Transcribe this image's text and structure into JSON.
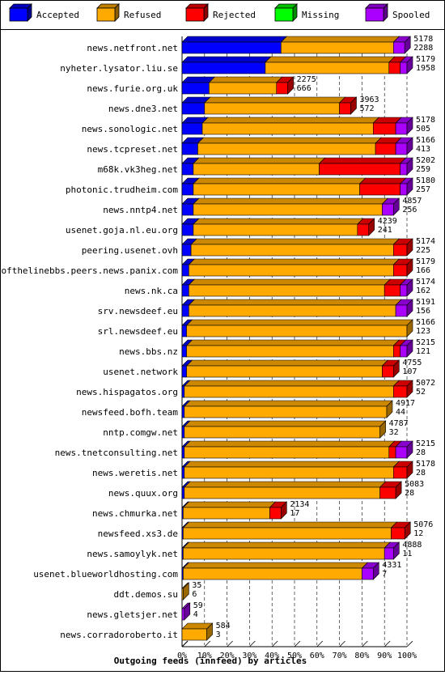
{
  "chart_data": {
    "type": "bar",
    "title": "Outgoing feeds (innfeed) by articles",
    "xlabel": "Outgoing feeds (innfeed) by articles",
    "xlim": [
      0,
      100
    ],
    "x_ticks": [
      "0%",
      "10%",
      "20%",
      "30%",
      "40%",
      "50%",
      "60%",
      "70%",
      "80%",
      "90%",
      "100%"
    ],
    "stacked": true,
    "orientation": "horizontal",
    "legend_position": "top",
    "legend": [
      {
        "name": "Accepted",
        "color": "#0000ff"
      },
      {
        "name": "Refused",
        "color": "#ffaa00"
      },
      {
        "name": "Rejected",
        "color": "#ff0000"
      },
      {
        "name": "Missing",
        "color": "#00ff00"
      },
      {
        "name": "Spooled",
        "color": "#aa00ff"
      }
    ],
    "rows": [
      {
        "host": "news.netfront.net",
        "offered": "5178",
        "accepted": "2288",
        "pct": {
          "accepted": 44,
          "refused": 50,
          "rejected": 0,
          "missing": 0,
          "spooled": 5
        }
      },
      {
        "host": "nyheter.lysator.liu.se",
        "offered": "5179",
        "accepted": "1958",
        "pct": {
          "accepted": 37,
          "refused": 55,
          "rejected": 5,
          "missing": 0,
          "spooled": 3
        }
      },
      {
        "host": "news.furie.org.uk",
        "offered": "2275",
        "accepted": "666",
        "pct": {
          "accepted": 12,
          "refused": 30,
          "rejected": 5,
          "missing": 0,
          "spooled": 0
        }
      },
      {
        "host": "news.dne3.net",
        "offered": "3963",
        "accepted": "572",
        "pct": {
          "accepted": 10,
          "refused": 60,
          "rejected": 5,
          "missing": 0,
          "spooled": 0
        }
      },
      {
        "host": "news.sonologic.net",
        "offered": "5178",
        "accepted": "505",
        "pct": {
          "accepted": 9,
          "refused": 76,
          "rejected": 10,
          "missing": 0,
          "spooled": 5
        }
      },
      {
        "host": "news.tcpreset.net",
        "offered": "5166",
        "accepted": "413",
        "pct": {
          "accepted": 7,
          "refused": 79,
          "rejected": 9,
          "missing": 0,
          "spooled": 5
        }
      },
      {
        "host": "m68k.vk3heg.net",
        "offered": "5202",
        "accepted": "259",
        "pct": {
          "accepted": 5,
          "refused": 56,
          "rejected": 36,
          "missing": 0,
          "spooled": 3
        }
      },
      {
        "host": "photonic.trudheim.com",
        "offered": "5180",
        "accepted": "257",
        "pct": {
          "accepted": 5,
          "refused": 74,
          "rejected": 18,
          "missing": 0,
          "spooled": 3
        }
      },
      {
        "host": "news.nntp4.net",
        "offered": "4857",
        "accepted": "256",
        "pct": {
          "accepted": 5,
          "refused": 84,
          "rejected": 0,
          "missing": 0,
          "spooled": 5
        }
      },
      {
        "host": "usenet.goja.nl.eu.org",
        "offered": "4239",
        "accepted": "241",
        "pct": {
          "accepted": 5,
          "refused": 73,
          "rejected": 5,
          "missing": 0,
          "spooled": 0
        }
      },
      {
        "host": "peering.usenet.ovh",
        "offered": "5174",
        "accepted": "225",
        "pct": {
          "accepted": 4,
          "refused": 90,
          "rejected": 6,
          "missing": 0,
          "spooled": 0
        }
      },
      {
        "host": "endofthelinebbs.peers.news.panix.com",
        "offered": "5179",
        "accepted": "166",
        "pct": {
          "accepted": 3,
          "refused": 91,
          "rejected": 6,
          "missing": 0,
          "spooled": 0
        }
      },
      {
        "host": "news.nk.ca",
        "offered": "5174",
        "accepted": "162",
        "pct": {
          "accepted": 3,
          "refused": 87,
          "rejected": 7,
          "missing": 0,
          "spooled": 3
        }
      },
      {
        "host": "srv.newsdeef.eu",
        "offered": "5191",
        "accepted": "156",
        "pct": {
          "accepted": 3,
          "refused": 92,
          "rejected": 0,
          "missing": 0,
          "spooled": 5
        }
      },
      {
        "host": "srl.newsdeef.eu",
        "offered": "5166",
        "accepted": "123",
        "pct": {
          "accepted": 2,
          "refused": 98,
          "rejected": 0,
          "missing": 0,
          "spooled": 0
        }
      },
      {
        "host": "news.bbs.nz",
        "offered": "5215",
        "accepted": "121",
        "pct": {
          "accepted": 2,
          "refused": 92,
          "rejected": 3,
          "missing": 0,
          "spooled": 3
        }
      },
      {
        "host": "usenet.network",
        "offered": "4755",
        "accepted": "107",
        "pct": {
          "accepted": 2,
          "refused": 87,
          "rejected": 5,
          "missing": 0,
          "spooled": 0
        }
      },
      {
        "host": "news.hispagatos.org",
        "offered": "5072",
        "accepted": "52",
        "pct": {
          "accepted": 1,
          "refused": 93,
          "rejected": 6,
          "missing": 0,
          "spooled": 0
        }
      },
      {
        "host": "newsfeed.bofh.team",
        "offered": "4917",
        "accepted": "44",
        "pct": {
          "accepted": 1,
          "refused": 90,
          "rejected": 0,
          "missing": 0,
          "spooled": 0
        }
      },
      {
        "host": "nntp.comgw.net",
        "offered": "4787",
        "accepted": "32",
        "pct": {
          "accepted": 1,
          "refused": 87,
          "rejected": 0,
          "missing": 0,
          "spooled": 0
        }
      },
      {
        "host": "news.tnetconsulting.net",
        "offered": "5215",
        "accepted": "28",
        "pct": {
          "accepted": 1,
          "refused": 91,
          "rejected": 3,
          "missing": 0,
          "spooled": 5
        }
      },
      {
        "host": "news.weretis.net",
        "offered": "5178",
        "accepted": "28",
        "pct": {
          "accepted": 1,
          "refused": 93,
          "rejected": 6,
          "missing": 0,
          "spooled": 0
        }
      },
      {
        "host": "news.quux.org",
        "offered": "5083",
        "accepted": "28",
        "pct": {
          "accepted": 1,
          "refused": 87,
          "rejected": 7,
          "missing": 0,
          "spooled": 0
        }
      },
      {
        "host": "news.chmurka.net",
        "offered": "2134",
        "accepted": "17",
        "pct": {
          "accepted": 0.5,
          "refused": 38.5,
          "rejected": 5,
          "missing": 0,
          "spooled": 0
        }
      },
      {
        "host": "newsfeed.xs3.de",
        "offered": "5076",
        "accepted": "12",
        "pct": {
          "accepted": 0.5,
          "refused": 92.5,
          "rejected": 6,
          "missing": 0,
          "spooled": 0
        }
      },
      {
        "host": "news.samoylyk.net",
        "offered": "4888",
        "accepted": "11",
        "pct": {
          "accepted": 0.5,
          "refused": 89.5,
          "rejected": 0,
          "missing": 0,
          "spooled": 4
        }
      },
      {
        "host": "usenet.blueworldhosting.com",
        "offered": "4331",
        "accepted": "7",
        "pct": {
          "accepted": 0.5,
          "refused": 79.5,
          "rejected": 0,
          "missing": 0,
          "spooled": 5
        }
      },
      {
        "host": "ddt.demos.su",
        "offered": "35",
        "accepted": "6",
        "pct": {
          "accepted": 0,
          "refused": 0.5,
          "rejected": 0,
          "missing": 0,
          "spooled": 0
        }
      },
      {
        "host": "news.gletsjer.net",
        "offered": "59",
        "accepted": "4",
        "pct": {
          "accepted": 0,
          "refused": 0,
          "rejected": 0,
          "missing": 0,
          "spooled": 1
        }
      },
      {
        "host": "news.corradoroberto.it",
        "offered": "584",
        "accepted": "3",
        "pct": {
          "accepted": 0,
          "refused": 11,
          "rejected": 0,
          "missing": 0,
          "spooled": 0
        }
      }
    ]
  }
}
